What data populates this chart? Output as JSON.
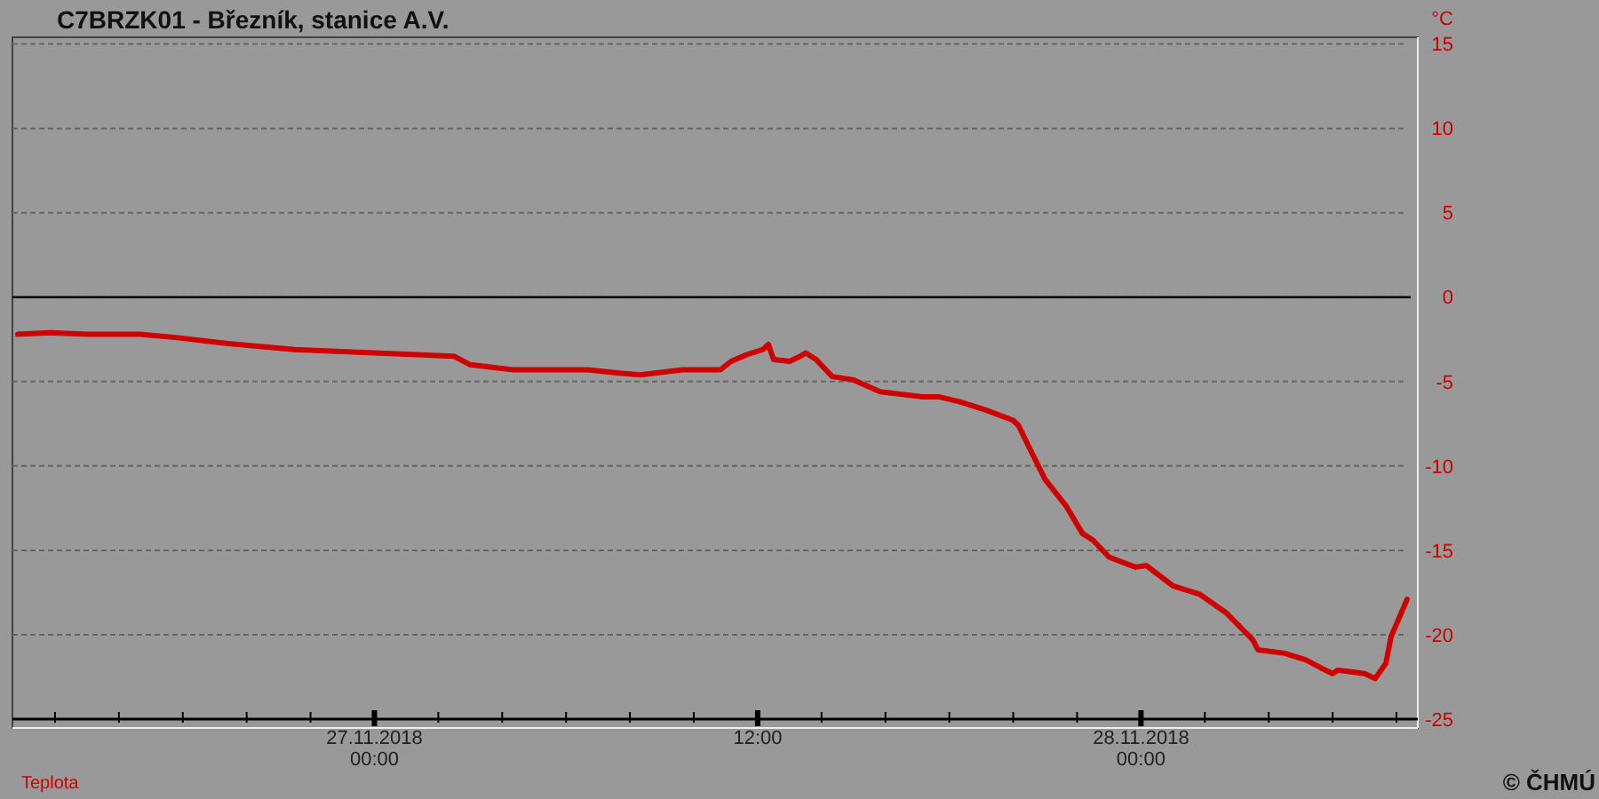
{
  "chart_data": {
    "type": "line",
    "title": "C7BRZK01 - Březník, stanice A.V.",
    "ylabel": "°C",
    "x": [
      "2018-11-26T12:50",
      "2018-11-26T13:50",
      "2018-11-26T15:00",
      "2018-11-26T16:40",
      "2018-11-26T17:50",
      "2018-11-26T19:10",
      "2018-11-26T21:30",
      "2018-11-27T00:00",
      "2018-11-27T02:30",
      "2018-11-27T03:00",
      "2018-11-27T04:20",
      "2018-11-27T06:40",
      "2018-11-27T07:40",
      "2018-11-27T08:20",
      "2018-11-27T09:40",
      "2018-11-27T10:50",
      "2018-11-27T11:10",
      "2018-11-27T11:40",
      "2018-11-27T12:10",
      "2018-11-27T12:20",
      "2018-11-27T12:30",
      "2018-11-27T13:00",
      "2018-11-27T13:20",
      "2018-11-27T13:30",
      "2018-11-27T13:50",
      "2018-11-27T14:20",
      "2018-11-27T15:00",
      "2018-11-27T15:50",
      "2018-11-27T17:10",
      "2018-11-27T17:40",
      "2018-11-27T18:20",
      "2018-11-27T19:10",
      "2018-11-27T20:00",
      "2018-11-27T20:10",
      "2018-11-27T20:30",
      "2018-11-27T21:00",
      "2018-11-27T21:40",
      "2018-11-27T22:10",
      "2018-11-27T22:30",
      "2018-11-27T23:00",
      "2018-11-27T23:50",
      "2018-11-28T00:10",
      "2018-11-28T01:00",
      "2018-11-28T01:50",
      "2018-11-28T02:40",
      "2018-11-28T03:30",
      "2018-11-28T03:40",
      "2018-11-28T04:30",
      "2018-11-28T05:10",
      "2018-11-28T05:40",
      "2018-11-28T06:00",
      "2018-11-28T06:10",
      "2018-11-28T07:00",
      "2018-11-28T07:20",
      "2018-11-28T07:40",
      "2018-11-28T07:50",
      "2018-11-28T08:20"
    ],
    "series": [
      {
        "name": "Teplota",
        "color": "#d00000",
        "values": [
          -2.2,
          -2.1,
          -2.2,
          -2.2,
          -2.4,
          -2.7,
          -3.1,
          -3.3,
          -3.5,
          -4.0,
          -4.3,
          -4.3,
          -4.5,
          -4.6,
          -4.3,
          -4.3,
          -3.8,
          -3.4,
          -3.1,
          -2.8,
          -3.7,
          -3.8,
          -3.5,
          -3.3,
          -3.7,
          -4.7,
          -4.9,
          -5.6,
          -5.9,
          -5.9,
          -6.2,
          -6.7,
          -7.3,
          -7.6,
          -8.9,
          -10.8,
          -12.4,
          -14.0,
          -14.4,
          -15.4,
          -16.0,
          -15.9,
          -17.1,
          -17.6,
          -18.7,
          -20.3,
          -20.9,
          -21.1,
          -21.5,
          -22.0,
          -22.3,
          -22.1,
          -22.3,
          -22.6,
          -21.7,
          -20.1,
          -17.9
        ]
      }
    ],
    "xlim": [
      "2018-11-26T12:40",
      "2018-11-28T08:40"
    ],
    "xticks": [
      {
        "value": "2018-11-26T14:00",
        "label": null
      },
      {
        "value": "2018-11-26T16:00",
        "label": null
      },
      {
        "value": "2018-11-26T18:00",
        "label": null
      },
      {
        "value": "2018-11-26T20:00",
        "label": null
      },
      {
        "value": "2018-11-26T22:00",
        "label": null
      },
      {
        "value": "2018-11-27T00:00",
        "label": "27.11.2018\n00:00"
      },
      {
        "value": "2018-11-27T02:00",
        "label": null
      },
      {
        "value": "2018-11-27T04:00",
        "label": null
      },
      {
        "value": "2018-11-27T06:00",
        "label": null
      },
      {
        "value": "2018-11-27T08:00",
        "label": null
      },
      {
        "value": "2018-11-27T10:00",
        "label": null
      },
      {
        "value": "2018-11-27T12:00",
        "label": "12:00"
      },
      {
        "value": "2018-11-27T14:00",
        "label": null
      },
      {
        "value": "2018-11-27T16:00",
        "label": null
      },
      {
        "value": "2018-11-27T18:00",
        "label": null
      },
      {
        "value": "2018-11-27T20:00",
        "label": null
      },
      {
        "value": "2018-11-27T22:00",
        "label": null
      },
      {
        "value": "2018-11-28T00:00",
        "label": "28.11.2018\n00:00"
      },
      {
        "value": "2018-11-28T02:00",
        "label": null
      },
      {
        "value": "2018-11-28T04:00",
        "label": null
      },
      {
        "value": "2018-11-28T06:00",
        "label": null
      },
      {
        "value": "2018-11-28T08:00",
        "label": null
      }
    ],
    "ylim": [
      -25,
      15.4
    ],
    "yticks": [
      15,
      10,
      5,
      0,
      -5,
      -10,
      -15,
      -20,
      -25
    ],
    "grid": "y",
    "legend": "bottom left",
    "marker": "none",
    "line_style": "solid",
    "ref_lines": [
      {
        "axis": "y",
        "value": 0,
        "color": "#000000"
      }
    ],
    "annotations": [
      "© ČHMÚ"
    ]
  }
}
